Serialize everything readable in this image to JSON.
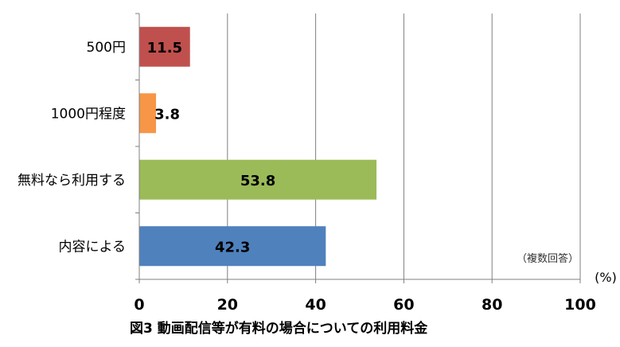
{
  "chart_data": {
    "type": "bar",
    "orientation": "horizontal",
    "categories": [
      "500円",
      "1000円程度",
      "無料なら利用する",
      "内容による"
    ],
    "values": [
      11.5,
      3.8,
      53.8,
      42.3
    ],
    "data_labels": [
      "11.5",
      "3.8",
      "53.8",
      "42.3"
    ],
    "colors": [
      "#c0504d",
      "#f79646",
      "#9bbb59",
      "#4f81bd"
    ],
    "xlim": [
      0,
      100
    ],
    "xticks": [
      0,
      20,
      40,
      60,
      80,
      100
    ],
    "xtick_labels": [
      "0",
      "20",
      "40",
      "60",
      "80",
      "100"
    ],
    "unit": "(%)",
    "note": "（複数回答）",
    "caption": "図3  動画配信等が有料の場合についての利用料金",
    "grid": true,
    "axis_color": "#7f7f7f",
    "grid_color": "#7f7f7f"
  }
}
